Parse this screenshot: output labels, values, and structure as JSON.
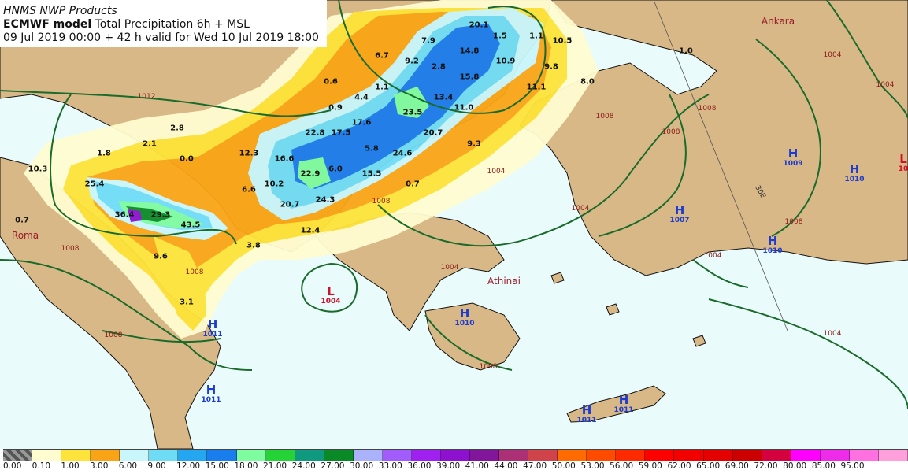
{
  "header": {
    "line1": "HNMS NWP Products",
    "model": "ECMWF model",
    "product": " Total Precipitation 6h + MSL",
    "valid": "09 Jul 2019 00:00 + 42 h valid for Wed 10 Jul 2019 18:00"
  },
  "cities": {
    "roma": "Roma",
    "athinai": "Athinai",
    "ankara": "Ankara"
  },
  "meridian_label": "30E",
  "pressure_systems": [
    {
      "type": "H",
      "value": "1011"
    },
    {
      "type": "H",
      "value": "1011"
    },
    {
      "type": "H",
      "value": "1010"
    },
    {
      "type": "H",
      "value": "1011"
    },
    {
      "type": "H",
      "value": "1011"
    },
    {
      "type": "H",
      "value": "1007"
    },
    {
      "type": "H",
      "value": "1010"
    },
    {
      "type": "H",
      "value": "1009"
    },
    {
      "type": "H",
      "value": "1010"
    },
    {
      "type": "L",
      "value": "1004"
    },
    {
      "type": "L",
      "value": "10"
    }
  ],
  "isobar_labels": [
    "1012",
    "1008",
    "1008",
    "1008",
    "1008",
    "1008",
    "1004",
    "1004",
    "1004",
    "1008",
    "1008",
    "1008",
    "1004",
    "1004",
    "1008",
    "1004",
    "1004"
  ],
  "precip_values": [
    "20.1",
    "1.5",
    "1.1",
    "10.5",
    "7.9",
    "14.8",
    "10.9",
    "6.7",
    "9.2",
    "2.8",
    "15.8",
    "9.8",
    "1.0",
    "0.6",
    "1.1",
    "11.1",
    "8.0",
    "4.4",
    "13.4",
    "0.9",
    "11.0",
    "2.8",
    "23.5",
    "17.6",
    "22.8",
    "17.5",
    "20.7",
    "2.1",
    "5.8",
    "9.3",
    "1.8",
    "12.3",
    "16.6",
    "24.6",
    "0.0",
    "10.3",
    "6.0",
    "22.9",
    "15.5",
    "0.7",
    "25.4",
    "6.6",
    "10.2",
    "24.3",
    "20.7",
    "36.4",
    "29.3",
    "43.5",
    "0.7",
    "12.4",
    "3.8",
    "9.6",
    "3.1"
  ],
  "legend": {
    "colors": [
      "#7f7f7f",
      "#fffdd0",
      "#fee43a",
      "#f9a416",
      "#c9f6fb",
      "#6fdcf5",
      "#25a6f0",
      "#1a7ded",
      "#7dfca0",
      "#26d336",
      "#0f9a7f",
      "#0a8a26",
      "#aab2fc",
      "#a15cfb",
      "#a020f0",
      "#8d11cf",
      "#82169b",
      "#ab3075",
      "#d0434a",
      "#ff6b00",
      "#ff4b00",
      "#ff2a00",
      "#ff0000",
      "#f20000",
      "#e40000",
      "#cc0000",
      "#d40040",
      "#ff00ff",
      "#ee2be9",
      "#ff70e0",
      "#ffa0dc"
    ],
    "ticks": [
      "0.00",
      "0.10",
      "1.00",
      "3.00",
      "6.00",
      "9.00",
      "12.00",
      "15.00",
      "18.00",
      "21.00",
      "24.00",
      "27.00",
      "30.00",
      "33.00",
      "36.00",
      "39.00",
      "41.00",
      "44.00",
      "47.00",
      "50.00",
      "53.00",
      "56.00",
      "59.00",
      "62.00",
      "65.00",
      "69.00",
      "72.00",
      "80.00",
      "85.00",
      "95.00"
    ]
  }
}
